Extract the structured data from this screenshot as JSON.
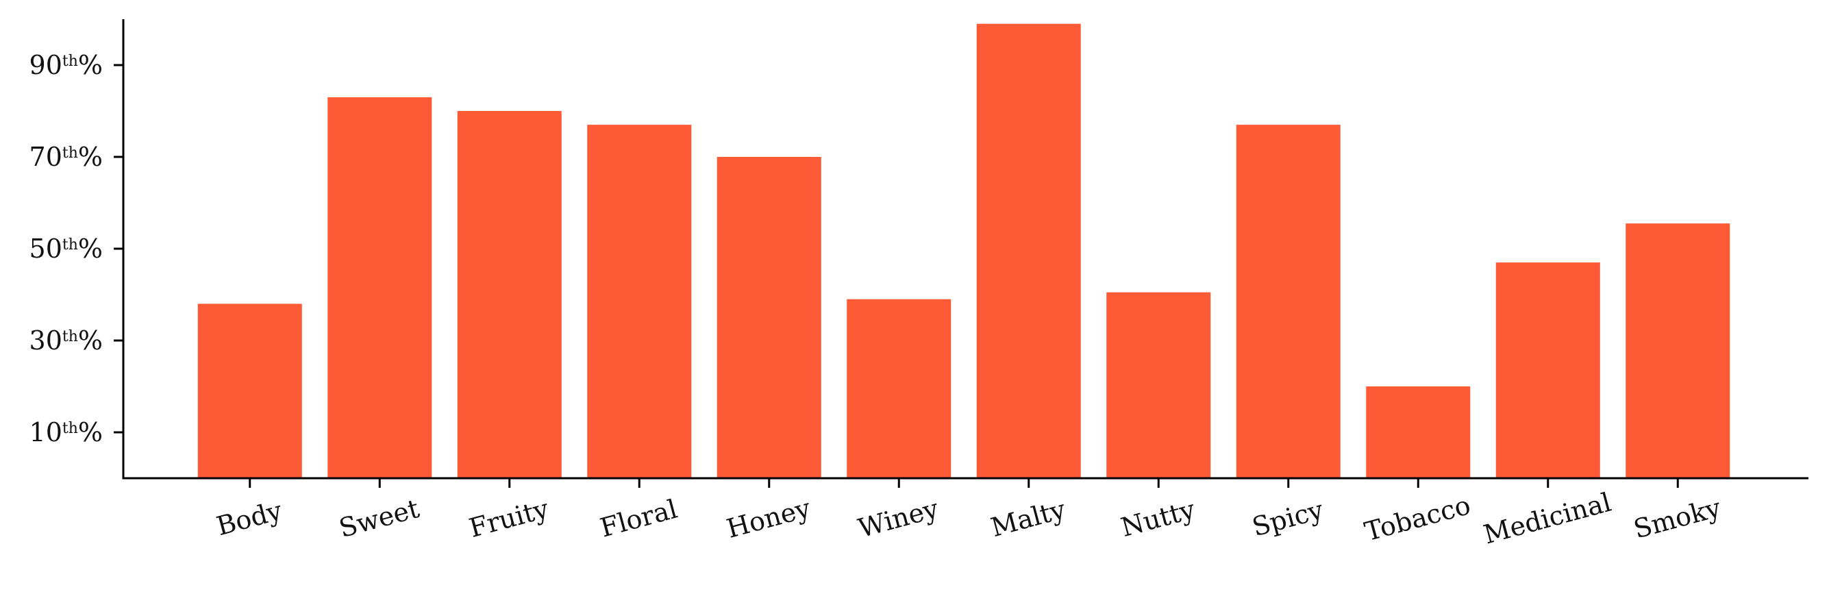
{
  "chart_data": {
    "type": "bar",
    "title": "",
    "xlabel": "",
    "ylabel": "",
    "categories": [
      "Body",
      "Sweet",
      "Fruity",
      "Floral",
      "Honey",
      "Winey",
      "Malty",
      "Nutty",
      "Spicy",
      "Tobacco",
      "Medicinal",
      "Smoky"
    ],
    "values": [
      38,
      83,
      80,
      77,
      70,
      39,
      99,
      40.5,
      77,
      20,
      47,
      55.5
    ],
    "ylim": [
      0,
      100
    ],
    "yticks": [
      {
        "value": 10,
        "num": "10",
        "sup": "th",
        "suffix": "%"
      },
      {
        "value": 30,
        "num": "30",
        "sup": "th",
        "suffix": "%"
      },
      {
        "value": 50,
        "num": "50",
        "sup": "th",
        "suffix": "%"
      },
      {
        "value": 70,
        "num": "70",
        "sup": "th",
        "suffix": "%"
      },
      {
        "value": 90,
        "num": "90",
        "sup": "th",
        "suffix": "%"
      }
    ],
    "bar_color": "#ff5a36",
    "grid": false,
    "legend": "none",
    "xtick_rotation_deg": 15
  }
}
